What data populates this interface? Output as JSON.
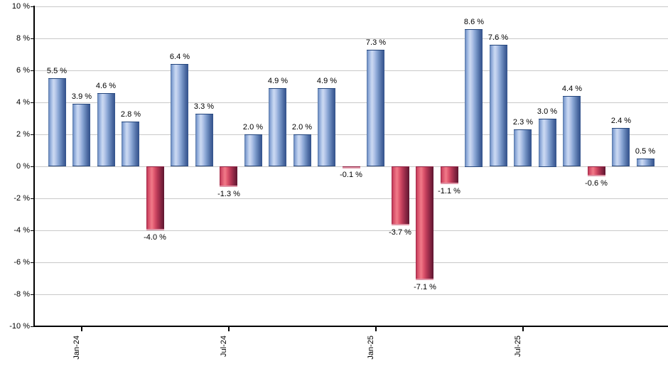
{
  "chart_data": {
    "type": "bar",
    "title": "",
    "xlabel": "",
    "ylabel": "",
    "ylim": [
      -10,
      10
    ],
    "grid": true,
    "legend": false,
    "values": [
      5.5,
      3.9,
      4.6,
      2.8,
      -4.0,
      6.4,
      3.3,
      -1.3,
      2.0,
      4.9,
      2.0,
      4.9,
      -0.1,
      7.3,
      -3.7,
      -7.1,
      -1.1,
      8.6,
      7.6,
      2.3,
      3.0,
      4.4,
      -0.6,
      2.4,
      0.5
    ],
    "bar_value_labels": [
      "5.5 %",
      "3.9 %",
      "4.6 %",
      "2.8 %",
      "-4.0 %",
      "6.4 %",
      "3.3 %",
      "-1.3 %",
      "2.0 %",
      "4.9 %",
      "2.0 %",
      "4.9 %",
      "-0.1 %",
      "7.3 %",
      "-3.7 %",
      "-7.1 %",
      "-1.1 %",
      "8.6 %",
      "7.6 %",
      "2.3 %",
      "3.0 %",
      "4.4 %",
      "-0.6 %",
      "2.4 %",
      "0.5 %"
    ],
    "x_tick_labels": [
      "Jan-24",
      "Jul-24",
      "Jan-25",
      "Jul-25"
    ],
    "x_tick_bar_indices": [
      1,
      7,
      13,
      19
    ],
    "y_tick_labels": [
      "10 %",
      "8 %",
      "6 %",
      "4 %",
      "2 %",
      "0 %",
      "-2 %",
      "-4 %",
      "-6 %",
      "-8 %",
      "-10 %"
    ],
    "y_tick_values": [
      10,
      8,
      6,
      4,
      2,
      0,
      -2,
      -4,
      -6,
      -8,
      -10
    ],
    "colors": {
      "positive_bar": "#8fa9d6",
      "positive_bar_highlight": "#ccdaf2",
      "positive_bar_dark": "#33528b",
      "negative_bar": "#cf4763",
      "negative_bar_highlight": "#f07a88",
      "negative_bar_dark": "#5d1630",
      "gridline": "#c9c9c9",
      "axis": "#000000",
      "label_text": "#000000",
      "background": "#ffffff"
    }
  }
}
